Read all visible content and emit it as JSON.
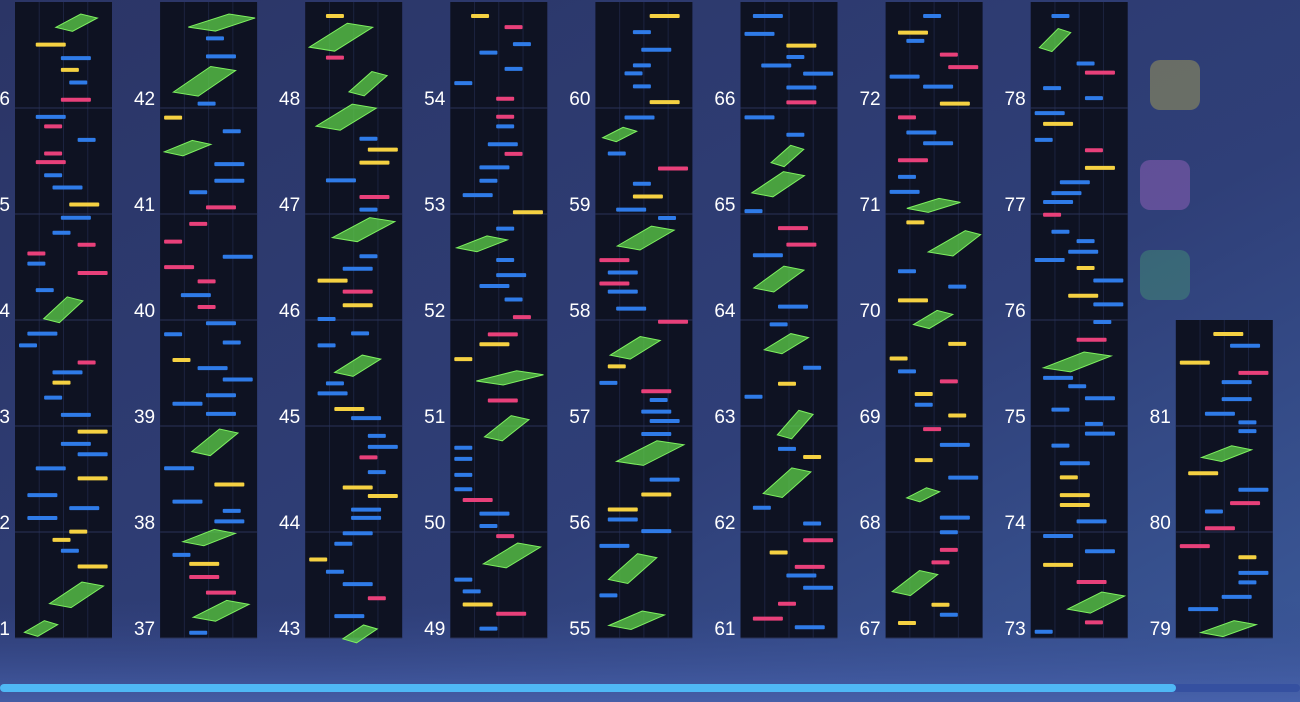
{
  "columns": [
    {
      "measures": [
        "6",
        "5",
        "4",
        "3",
        "2",
        "1"
      ]
    },
    {
      "measures": [
        "42",
        "41",
        "40",
        "39",
        "38",
        "37"
      ]
    },
    {
      "measures": [
        "48",
        "47",
        "46",
        "45",
        "44",
        "43"
      ]
    },
    {
      "measures": [
        "54",
        "53",
        "52",
        "51",
        "50",
        "49"
      ]
    },
    {
      "measures": [
        "60",
        "59",
        "58",
        "57",
        "56",
        "55"
      ]
    },
    {
      "measures": [
        "66",
        "65",
        "64",
        "63",
        "62",
        "61"
      ]
    },
    {
      "measures": [
        "72",
        "71",
        "70",
        "69",
        "68",
        "67"
      ]
    },
    {
      "measures": [
        "78",
        "77",
        "76",
        "75",
        "74",
        "73"
      ]
    },
    {
      "measures": [
        "81",
        "80",
        "79"
      ]
    }
  ]
}
